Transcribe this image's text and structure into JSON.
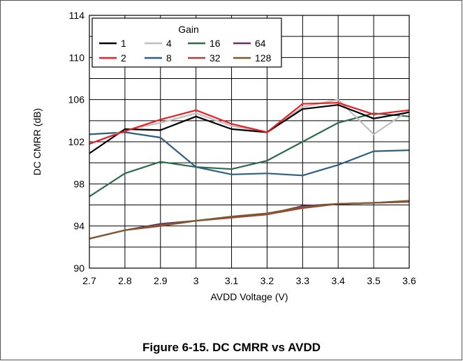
{
  "caption": "Figure 6-15. DC CMRR vs AVDD",
  "chart_data": {
    "type": "line",
    "title": "",
    "xlabel": "AVDD Voltage (V)",
    "ylabel": "DC CMRR (dB)",
    "xlim": [
      2.7,
      3.6
    ],
    "ylim": [
      90,
      114
    ],
    "x": [
      2.7,
      2.8,
      2.9,
      3.0,
      3.1,
      3.2,
      3.3,
      3.4,
      3.5,
      3.6
    ],
    "x_tick_labels": [
      "2.7",
      "2.8",
      "2.9",
      "3",
      "3.1",
      "3.2",
      "3.3",
      "3.4",
      "3.5",
      "3.6"
    ],
    "y_ticks": [
      90,
      94,
      98,
      102,
      106,
      110,
      114
    ],
    "grid": true,
    "legend": {
      "title": "Gain",
      "placement": "top-left",
      "columns": 4
    },
    "series": [
      {
        "name": "1",
        "color": "#000000",
        "values": [
          100.9,
          103.2,
          103.1,
          104.4,
          103.2,
          102.9,
          105.1,
          105.5,
          104.2,
          104.8
        ]
      },
      {
        "name": "4",
        "color": "#bfbfbf",
        "values": [
          101.8,
          103.1,
          103.8,
          104.7,
          103.5,
          102.9,
          105.3,
          106.0,
          102.7,
          105.0
        ]
      },
      {
        "name": "16",
        "color": "#2e6b4d",
        "values": [
          96.8,
          99.0,
          100.1,
          99.6,
          99.4,
          100.2,
          102.0,
          103.8,
          104.7,
          104.4
        ]
      },
      {
        "name": "64",
        "color": "#6b2e6b",
        "values": [
          92.8,
          93.6,
          94.2,
          94.5,
          94.8,
          95.1,
          95.9,
          96.1,
          96.2,
          96.3
        ]
      },
      {
        "name": "2",
        "color": "#ee1c25",
        "values": [
          101.8,
          103.0,
          104.1,
          105.0,
          103.7,
          102.9,
          105.6,
          105.7,
          104.6,
          105.0
        ]
      },
      {
        "name": "8",
        "color": "#2f5f7f",
        "values": [
          102.7,
          102.9,
          102.4,
          99.6,
          98.9,
          99.0,
          98.8,
          99.8,
          101.1,
          101.2
        ]
      },
      {
        "name": "32",
        "color": "#a2453a",
        "values": [
          92.8,
          93.6,
          94.0,
          94.5,
          94.8,
          95.1,
          95.7,
          96.1,
          96.2,
          96.3
        ]
      },
      {
        "name": "128",
        "color": "#7b5a2e",
        "values": [
          92.8,
          93.6,
          94.1,
          94.5,
          94.9,
          95.2,
          95.8,
          96.1,
          96.2,
          96.4
        ]
      }
    ]
  }
}
